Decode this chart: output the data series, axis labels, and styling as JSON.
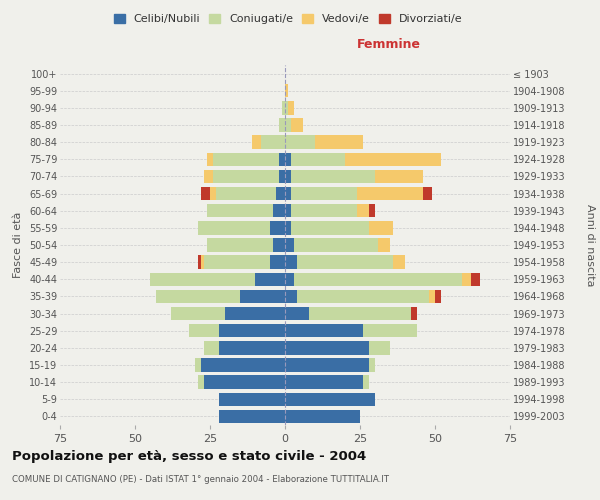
{
  "age_groups": [
    "0-4",
    "5-9",
    "10-14",
    "15-19",
    "20-24",
    "25-29",
    "30-34",
    "35-39",
    "40-44",
    "45-49",
    "50-54",
    "55-59",
    "60-64",
    "65-69",
    "70-74",
    "75-79",
    "80-84",
    "85-89",
    "90-94",
    "95-99",
    "100+"
  ],
  "birth_years": [
    "1999-2003",
    "1994-1998",
    "1989-1993",
    "1984-1988",
    "1979-1983",
    "1974-1978",
    "1969-1973",
    "1964-1968",
    "1959-1963",
    "1954-1958",
    "1949-1953",
    "1944-1948",
    "1939-1943",
    "1934-1938",
    "1929-1933",
    "1924-1928",
    "1919-1923",
    "1914-1918",
    "1909-1913",
    "1904-1908",
    "≤ 1903"
  ],
  "male": {
    "celibi": [
      22,
      22,
      27,
      28,
      22,
      22,
      20,
      15,
      10,
      5,
      4,
      5,
      4,
      3,
      2,
      2,
      0,
      0,
      0,
      0,
      0
    ],
    "coniugati": [
      0,
      0,
      2,
      2,
      5,
      10,
      18,
      28,
      35,
      22,
      22,
      24,
      22,
      20,
      22,
      22,
      8,
      2,
      1,
      0,
      0
    ],
    "vedovi": [
      0,
      0,
      0,
      0,
      0,
      0,
      0,
      0,
      0,
      1,
      0,
      0,
      0,
      2,
      3,
      2,
      3,
      0,
      0,
      0,
      0
    ],
    "divorziati": [
      0,
      0,
      0,
      0,
      0,
      0,
      0,
      0,
      0,
      1,
      0,
      0,
      0,
      3,
      0,
      0,
      0,
      0,
      0,
      0,
      0
    ]
  },
  "female": {
    "nubili": [
      25,
      30,
      26,
      28,
      28,
      26,
      8,
      4,
      3,
      4,
      3,
      2,
      2,
      2,
      2,
      2,
      0,
      0,
      0,
      0,
      0
    ],
    "coniugate": [
      0,
      0,
      2,
      2,
      7,
      18,
      34,
      44,
      56,
      32,
      28,
      26,
      22,
      22,
      28,
      18,
      10,
      2,
      1,
      0,
      0
    ],
    "vedove": [
      0,
      0,
      0,
      0,
      0,
      0,
      0,
      2,
      3,
      4,
      4,
      8,
      4,
      22,
      16,
      32,
      16,
      4,
      2,
      1,
      0
    ],
    "divorziate": [
      0,
      0,
      0,
      0,
      0,
      0,
      2,
      2,
      3,
      0,
      0,
      0,
      2,
      3,
      0,
      0,
      0,
      0,
      0,
      0,
      0
    ]
  },
  "colors": {
    "celibi": "#3a6ea5",
    "coniugati": "#c5d9a0",
    "vedovi": "#f5c96b",
    "divorziati": "#c0392b"
  },
  "title": "Popolazione per età, sesso e stato civile - 2004",
  "subtitle": "COMUNE DI CATIGNANO (PE) - Dati ISTAT 1° gennaio 2004 - Elaborazione TUTTITALIA.IT",
  "xlabel_right": "Femmine",
  "ylabel_left": "Fasce di età",
  "ylabel_right": "Anni di nascita",
  "xlim": 75,
  "legend_labels": [
    "Celibi/Nubili",
    "Coniugati/e",
    "Vedovi/e",
    "Divorziati/e"
  ],
  "background_color": "#f0f0eb"
}
